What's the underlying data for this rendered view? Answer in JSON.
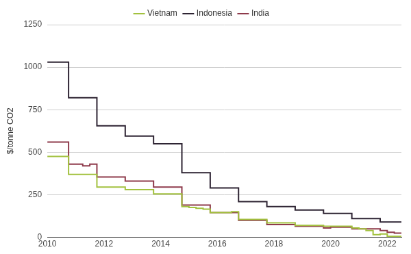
{
  "chart_data": {
    "type": "line",
    "y_label": "$/tonne CO2",
    "x": [
      2010,
      2010.25,
      2010.5,
      2010.75,
      2011,
      2011.25,
      2011.5,
      2011.75,
      2012,
      2012.25,
      2012.5,
      2012.75,
      2013,
      2013.25,
      2013.5,
      2013.75,
      2014,
      2014.25,
      2014.5,
      2014.75,
      2015,
      2015.25,
      2015.5,
      2015.75,
      2016,
      2016.25,
      2016.5,
      2016.75,
      2017,
      2017.25,
      2017.5,
      2017.75,
      2018,
      2018.25,
      2018.5,
      2018.75,
      2019,
      2019.25,
      2019.5,
      2019.75,
      2020,
      2020.25,
      2020.5,
      2020.75,
      2021,
      2021.25,
      2021.5,
      2021.75,
      2022,
      2022.25,
      2022.5
    ],
    "series": [
      {
        "name": "Vietnam",
        "color": "#a2c13e",
        "values": [
          475,
          475,
          475,
          475,
          370,
          370,
          370,
          370,
          295,
          295,
          295,
          295,
          280,
          280,
          280,
          280,
          255,
          255,
          255,
          255,
          180,
          175,
          170,
          165,
          145,
          145,
          145,
          150,
          105,
          105,
          105,
          105,
          85,
          85,
          85,
          85,
          70,
          70,
          70,
          70,
          65,
          65,
          65,
          65,
          55,
          50,
          40,
          15,
          20,
          5,
          5
        ]
      },
      {
        "name": "Indonesia",
        "color": "#2e2433",
        "values": [
          1030,
          1030,
          1030,
          1030,
          820,
          820,
          820,
          820,
          655,
          655,
          655,
          655,
          595,
          595,
          595,
          595,
          550,
          550,
          550,
          550,
          380,
          380,
          380,
          380,
          290,
          290,
          290,
          290,
          210,
          210,
          210,
          210,
          180,
          180,
          180,
          180,
          160,
          160,
          160,
          160,
          140,
          140,
          140,
          140,
          110,
          110,
          110,
          110,
          90,
          90,
          90
        ]
      },
      {
        "name": "India",
        "color": "#8e3a4b",
        "values": [
          560,
          560,
          560,
          560,
          430,
          430,
          420,
          430,
          355,
          355,
          355,
          355,
          330,
          330,
          330,
          330,
          295,
          295,
          295,
          295,
          190,
          190,
          190,
          190,
          145,
          145,
          145,
          145,
          100,
          100,
          100,
          100,
          75,
          75,
          75,
          75,
          65,
          65,
          65,
          65,
          55,
          60,
          60,
          60,
          50,
          50,
          50,
          50,
          40,
          30,
          25
        ]
      }
    ],
    "xlim": [
      2010,
      2022.5
    ],
    "xticks": [
      2010,
      2012,
      2014,
      2016,
      2018,
      2020,
      2022
    ],
    "ylim": [
      0,
      1250
    ],
    "yticks": [
      0,
      250,
      500,
      750,
      1000,
      1250
    ],
    "grid": true,
    "legend": "top",
    "line_style": "stepped"
  }
}
